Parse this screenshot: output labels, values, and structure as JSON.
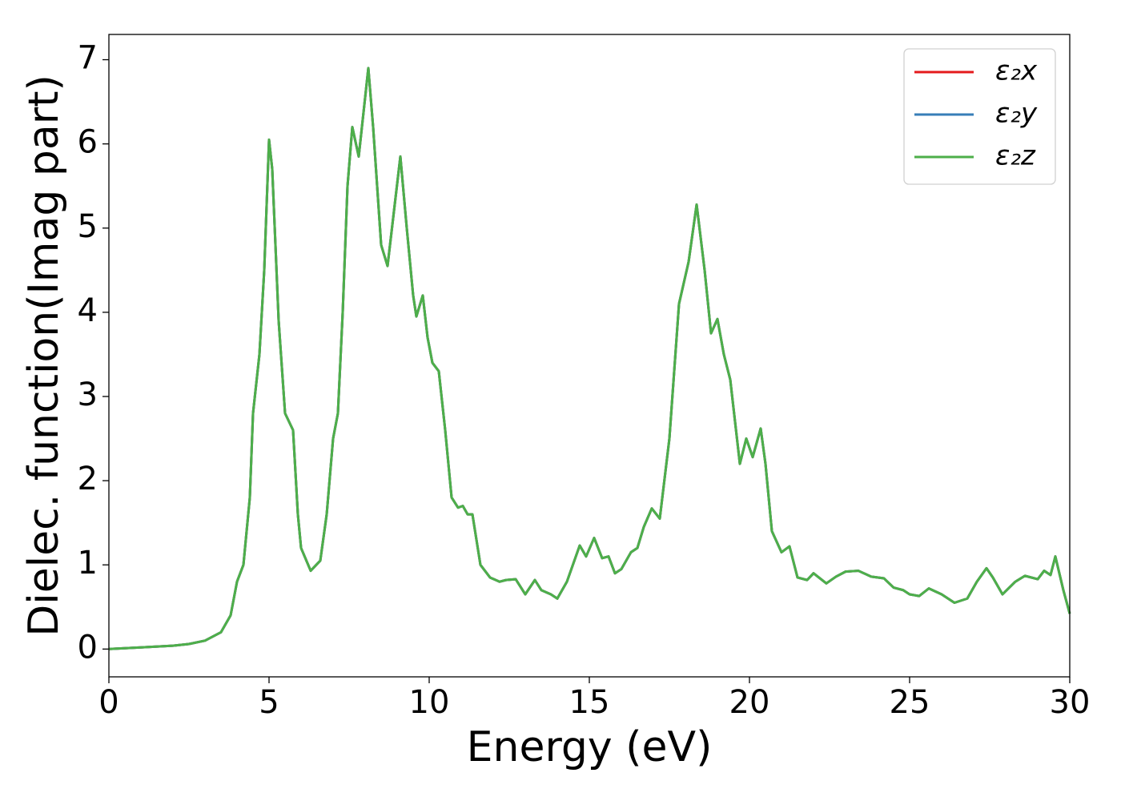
{
  "chart_data": {
    "type": "line",
    "xlabel": "Energy (eV)",
    "ylabel": "Dielec. function(Imag part)",
    "x": [
      0,
      1,
      2,
      2.5,
      3,
      3.5,
      3.8,
      4.0,
      4.2,
      4.4,
      4.5,
      4.7,
      4.85,
      5.0,
      5.1,
      5.3,
      5.5,
      5.75,
      5.9,
      6.0,
      6.3,
      6.6,
      6.8,
      7.0,
      7.15,
      7.3,
      7.45,
      7.6,
      7.8,
      8.1,
      8.25,
      8.5,
      8.7,
      8.9,
      9.1,
      9.3,
      9.5,
      9.6,
      9.8,
      9.95,
      10.1,
      10.3,
      10.5,
      10.7,
      10.9,
      11.05,
      11.2,
      11.35,
      11.6,
      11.9,
      12.2,
      12.4,
      12.7,
      13.0,
      13.3,
      13.5,
      13.8,
      14.0,
      14.3,
      14.7,
      14.9,
      15.15,
      15.4,
      15.6,
      15.8,
      16.0,
      16.3,
      16.5,
      16.7,
      16.95,
      17.2,
      17.5,
      17.8,
      18.1,
      18.35,
      18.6,
      18.8,
      19.0,
      19.2,
      19.4,
      19.7,
      19.9,
      20.1,
      20.35,
      20.5,
      20.7,
      21.0,
      21.25,
      21.5,
      21.8,
      22.0,
      22.4,
      22.7,
      23.0,
      23.4,
      23.8,
      24.2,
      24.5,
      24.8,
      25.0,
      25.3,
      25.6,
      26.0,
      26.4,
      26.8,
      27.1,
      27.4,
      27.6,
      27.9,
      28.3,
      28.6,
      29.0,
      29.2,
      29.4,
      29.55,
      29.8,
      30.0
    ],
    "series": [
      {
        "name": "ε₂x",
        "color": "#e41a1c",
        "values": [
          0,
          0.02,
          0.04,
          0.06,
          0.1,
          0.2,
          0.4,
          0.8,
          1.0,
          1.8,
          2.8,
          3.5,
          4.5,
          6.05,
          5.7,
          3.9,
          2.8,
          2.6,
          1.6,
          1.2,
          0.93,
          1.05,
          1.6,
          2.5,
          2.8,
          4.0,
          5.5,
          6.2,
          5.85,
          6.9,
          6.2,
          4.8,
          4.55,
          5.2,
          5.85,
          5.0,
          4.2,
          3.95,
          4.2,
          3.7,
          3.4,
          3.3,
          2.6,
          1.8,
          1.68,
          1.7,
          1.6,
          1.6,
          1.0,
          0.85,
          0.8,
          0.82,
          0.83,
          0.65,
          0.82,
          0.7,
          0.65,
          0.6,
          0.8,
          1.23,
          1.1,
          1.32,
          1.08,
          1.1,
          0.9,
          0.95,
          1.15,
          1.2,
          1.45,
          1.67,
          1.55,
          2.5,
          4.1,
          4.6,
          5.28,
          4.5,
          3.75,
          3.92,
          3.5,
          3.2,
          2.2,
          2.5,
          2.28,
          2.62,
          2.2,
          1.4,
          1.15,
          1.22,
          0.85,
          0.82,
          0.9,
          0.78,
          0.86,
          0.92,
          0.93,
          0.86,
          0.84,
          0.73,
          0.7,
          0.65,
          0.63,
          0.72,
          0.65,
          0.55,
          0.6,
          0.8,
          0.96,
          0.85,
          0.65,
          0.8,
          0.87,
          0.83,
          0.93,
          0.88,
          1.1,
          0.7,
          0.42
        ]
      },
      {
        "name": "ε₂y",
        "color": "#377eb8",
        "values": [
          0,
          0.02,
          0.04,
          0.06,
          0.1,
          0.2,
          0.4,
          0.8,
          1.0,
          1.8,
          2.8,
          3.5,
          4.5,
          6.05,
          5.7,
          3.9,
          2.8,
          2.6,
          1.6,
          1.2,
          0.93,
          1.05,
          1.6,
          2.5,
          2.8,
          4.0,
          5.5,
          6.2,
          5.85,
          6.9,
          6.2,
          4.8,
          4.55,
          5.2,
          5.85,
          5.0,
          4.2,
          3.95,
          4.2,
          3.7,
          3.4,
          3.3,
          2.6,
          1.8,
          1.68,
          1.7,
          1.6,
          1.6,
          1.0,
          0.85,
          0.8,
          0.82,
          0.83,
          0.65,
          0.82,
          0.7,
          0.65,
          0.6,
          0.8,
          1.23,
          1.1,
          1.32,
          1.08,
          1.1,
          0.9,
          0.95,
          1.15,
          1.2,
          1.45,
          1.67,
          1.55,
          2.5,
          4.1,
          4.6,
          5.28,
          4.5,
          3.75,
          3.92,
          3.5,
          3.2,
          2.2,
          2.5,
          2.28,
          2.62,
          2.2,
          1.4,
          1.15,
          1.22,
          0.85,
          0.82,
          0.9,
          0.78,
          0.86,
          0.92,
          0.93,
          0.86,
          0.84,
          0.73,
          0.7,
          0.65,
          0.63,
          0.72,
          0.65,
          0.55,
          0.6,
          0.8,
          0.96,
          0.85,
          0.65,
          0.8,
          0.87,
          0.83,
          0.93,
          0.88,
          1.1,
          0.7,
          0.42
        ]
      },
      {
        "name": "ε₂z",
        "color": "#4daf4a",
        "values": [
          0,
          0.02,
          0.04,
          0.06,
          0.1,
          0.2,
          0.4,
          0.8,
          1.0,
          1.8,
          2.8,
          3.5,
          4.5,
          6.05,
          5.7,
          3.9,
          2.8,
          2.6,
          1.6,
          1.2,
          0.93,
          1.05,
          1.6,
          2.5,
          2.8,
          4.0,
          5.5,
          6.2,
          5.85,
          6.9,
          6.2,
          4.8,
          4.55,
          5.2,
          5.85,
          5.0,
          4.2,
          3.95,
          4.2,
          3.7,
          3.4,
          3.3,
          2.6,
          1.8,
          1.68,
          1.7,
          1.6,
          1.6,
          1.0,
          0.85,
          0.8,
          0.82,
          0.83,
          0.65,
          0.82,
          0.7,
          0.65,
          0.6,
          0.8,
          1.23,
          1.1,
          1.32,
          1.08,
          1.1,
          0.9,
          0.95,
          1.15,
          1.2,
          1.45,
          1.67,
          1.55,
          2.5,
          4.1,
          4.6,
          5.28,
          4.5,
          3.75,
          3.92,
          3.5,
          3.2,
          2.2,
          2.5,
          2.28,
          2.62,
          2.2,
          1.4,
          1.15,
          1.22,
          0.85,
          0.82,
          0.9,
          0.78,
          0.86,
          0.92,
          0.93,
          0.86,
          0.84,
          0.73,
          0.7,
          0.65,
          0.63,
          0.72,
          0.65,
          0.55,
          0.6,
          0.8,
          0.96,
          0.85,
          0.65,
          0.8,
          0.87,
          0.83,
          0.93,
          0.88,
          1.1,
          0.7,
          0.42
        ]
      }
    ],
    "xlim": [
      0,
      30
    ],
    "xticks": [
      0,
      5,
      10,
      15,
      20,
      25,
      30
    ],
    "ylim": [
      -0.33,
      7.3
    ],
    "yticks": [
      0,
      1,
      2,
      3,
      4,
      5,
      6,
      7
    ],
    "grid": false,
    "legend": "upper right"
  }
}
